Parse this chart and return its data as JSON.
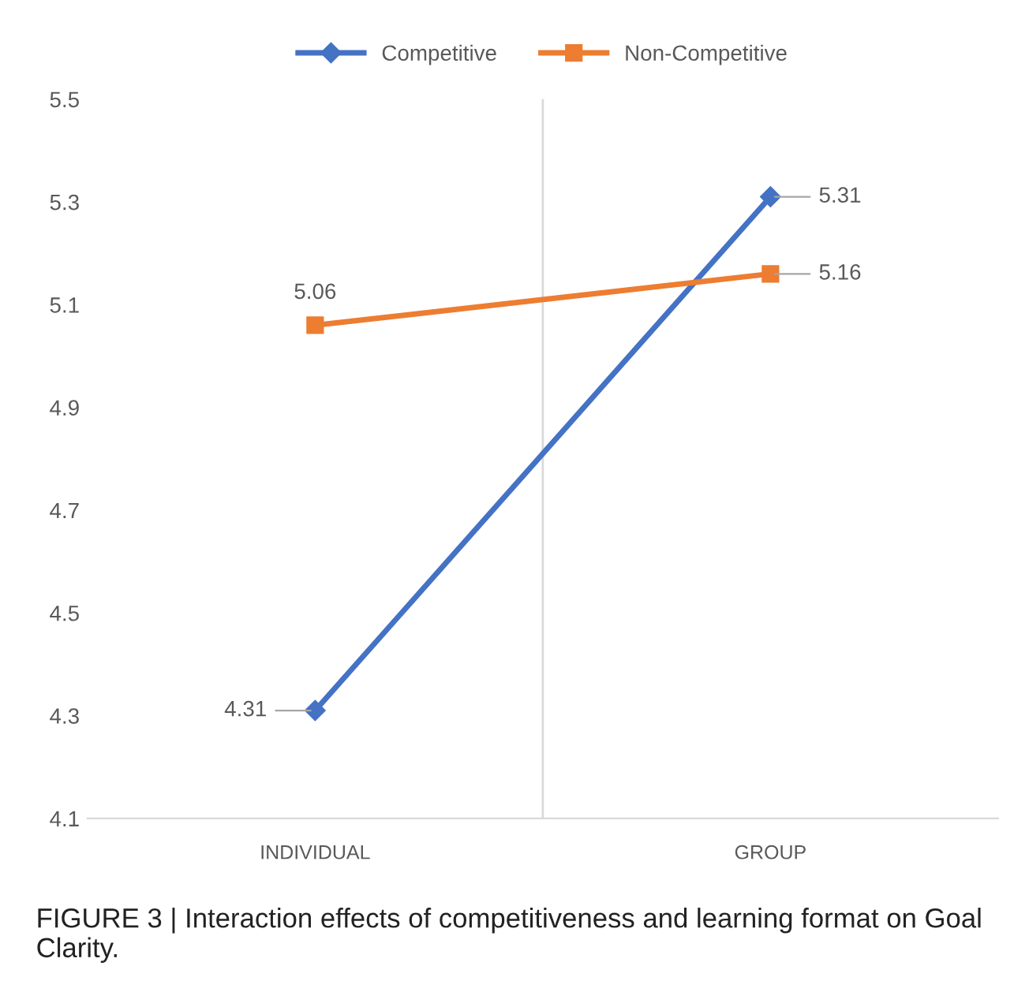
{
  "chart_data": {
    "type": "line",
    "categories": [
      "INDIVIDUAL",
      "GROUP"
    ],
    "series": [
      {
        "name": "Competitive",
        "color": "#4472c4",
        "values": [
          4.31,
          5.31
        ],
        "marker": "diamond"
      },
      {
        "name": "Non-Competitive",
        "color": "#ed7d31",
        "values": [
          5.06,
          5.16
        ],
        "marker": "square"
      }
    ],
    "ylim": [
      4.1,
      5.5
    ],
    "yticks": [
      4.1,
      4.3,
      4.5,
      4.7,
      4.9,
      5.1,
      5.3,
      5.5
    ],
    "data_labels": true,
    "legend": "top",
    "grid": "x",
    "annotations": [
      "FIGURE 3 | Interaction effects of competitiveness and learning format on Goal Clarity."
    ]
  }
}
